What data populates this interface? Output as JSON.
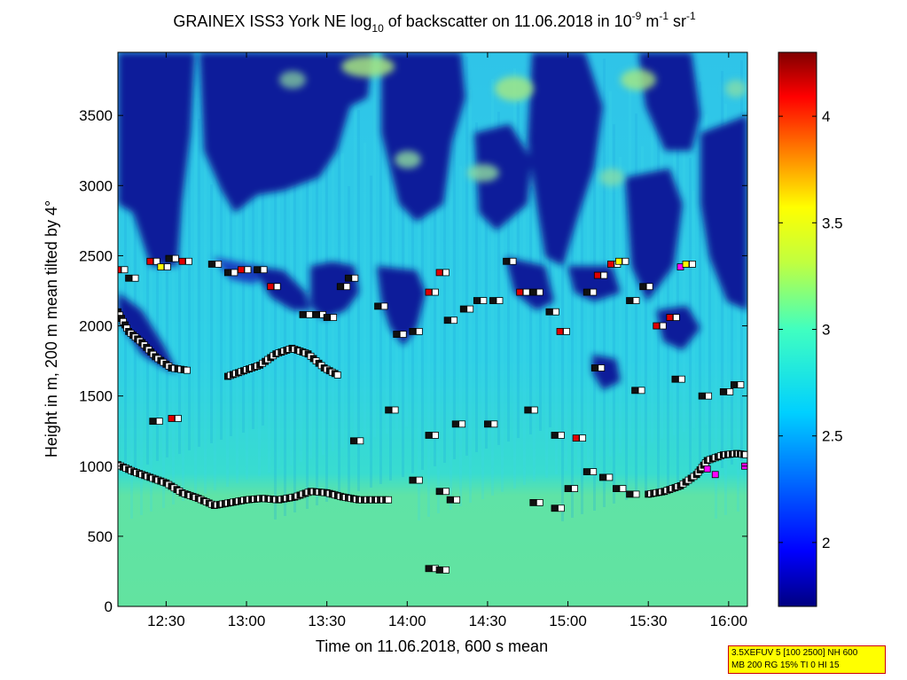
{
  "chart_data": {
    "type": "heatmap",
    "title": {
      "main": "GRAINEX ISS3 York NE log",
      "sub10": "10",
      "mid": " of backscatter on 11.06.2018 in 10",
      "sup_m9": "-9",
      "unit_m": " m",
      "sup_m1a": "-1",
      "unit_sr": " sr",
      "sup_m1b": "-1"
    },
    "xlabel": "Time on 11.06.2018, 600 s mean",
    "ylabel": "Height in m, 200 m mean tilted by 4°",
    "x_range": [
      "12:12",
      "16:07"
    ],
    "ylim": [
      0,
      3950
    ],
    "x_ticks": [
      {
        "label": "12:30",
        "min": 750
      },
      {
        "label": "13:00",
        "min": 780
      },
      {
        "label": "13:30",
        "min": 810
      },
      {
        "label": "14:00",
        "min": 840
      },
      {
        "label": "14:30",
        "min": 870
      },
      {
        "label": "15:00",
        "min": 900
      },
      {
        "label": "15:30",
        "min": 930
      },
      {
        "label": "16:00",
        "min": 960
      }
    ],
    "y_ticks": [
      0,
      500,
      1000,
      1500,
      2000,
      2500,
      3000,
      3500
    ],
    "colorbar": {
      "range": [
        1.7,
        4.3
      ],
      "ticks": [
        {
          "label": "2",
          "value": 2.0
        },
        {
          "label": "2.5",
          "value": 2.5
        },
        {
          "label": "3",
          "value": 3.0
        },
        {
          "label": "3.5",
          "value": 3.5
        },
        {
          "label": "4",
          "value": 4.0
        }
      ]
    },
    "layer_traces": [
      {
        "name": "boundary layer top",
        "points": [
          [
            732,
            1010
          ],
          [
            738,
            960
          ],
          [
            744,
            920
          ],
          [
            750,
            880
          ],
          [
            756,
            810
          ],
          [
            762,
            770
          ],
          [
            768,
            720
          ],
          [
            774,
            740
          ],
          [
            780,
            760
          ],
          [
            786,
            770
          ],
          [
            792,
            760
          ],
          [
            798,
            780
          ],
          [
            804,
            820
          ],
          [
            810,
            810
          ],
          [
            816,
            780
          ],
          [
            822,
            760
          ],
          [
            828,
            760
          ],
          [
            834,
            760
          ]
        ]
      },
      {
        "name": "aerosol layer 2",
        "points": [
          [
            773,
            1640
          ],
          [
            779,
            1680
          ],
          [
            785,
            1720
          ],
          [
            791,
            1800
          ],
          [
            797,
            1840
          ],
          [
            803,
            1800
          ],
          [
            809,
            1700
          ],
          [
            815,
            1640
          ]
        ]
      },
      {
        "name": "aerosol layer 3",
        "points": [
          [
            732,
            2100
          ],
          [
            736,
            1960
          ],
          [
            741,
            1880
          ],
          [
            746,
            1780
          ],
          [
            752,
            1700
          ],
          [
            759,
            1680
          ]
        ]
      },
      {
        "name": "evening top",
        "points": [
          [
            930,
            800
          ],
          [
            936,
            820
          ],
          [
            942,
            860
          ],
          [
            948,
            940
          ],
          [
            952,
            1040
          ],
          [
            958,
            1080
          ],
          [
            963,
            1090
          ],
          [
            967,
            1080
          ]
        ]
      }
    ],
    "markers": [
      {
        "t": 732,
        "h": 2400,
        "c": "red"
      },
      {
        "t": 736,
        "h": 2340,
        "c": "black"
      },
      {
        "t": 744,
        "h": 2460,
        "c": "red"
      },
      {
        "t": 748,
        "h": 2420,
        "c": "yellow"
      },
      {
        "t": 751,
        "h": 2480,
        "c": "black"
      },
      {
        "t": 756,
        "h": 2460,
        "c": "red"
      },
      {
        "t": 767,
        "h": 2440,
        "c": "black"
      },
      {
        "t": 773,
        "h": 2380,
        "c": "black"
      },
      {
        "t": 778,
        "h": 2400,
        "c": "red"
      },
      {
        "t": 784,
        "h": 2400,
        "c": "black"
      },
      {
        "t": 789,
        "h": 2280,
        "c": "red"
      },
      {
        "t": 801,
        "h": 2080,
        "c": "black"
      },
      {
        "t": 806,
        "h": 2080,
        "c": "black"
      },
      {
        "t": 810,
        "h": 2060,
        "c": "black"
      },
      {
        "t": 815,
        "h": 2280,
        "c": "black"
      },
      {
        "t": 818,
        "h": 2340,
        "c": "black"
      },
      {
        "t": 829,
        "h": 2140,
        "c": "black"
      },
      {
        "t": 836,
        "h": 1940,
        "c": "black"
      },
      {
        "t": 842,
        "h": 1960,
        "c": "black"
      },
      {
        "t": 848,
        "h": 2240,
        "c": "red"
      },
      {
        "t": 852,
        "h": 2380,
        "c": "red"
      },
      {
        "t": 855,
        "h": 2040,
        "c": "black"
      },
      {
        "t": 861,
        "h": 2120,
        "c": "black"
      },
      {
        "t": 866,
        "h": 2180,
        "c": "black"
      },
      {
        "t": 872,
        "h": 2180,
        "c": "black"
      },
      {
        "t": 877,
        "h": 2460,
        "c": "black"
      },
      {
        "t": 882,
        "h": 2240,
        "c": "red"
      },
      {
        "t": 887,
        "h": 2240,
        "c": "black"
      },
      {
        "t": 893,
        "h": 2100,
        "c": "black"
      },
      {
        "t": 897,
        "h": 1960,
        "c": "red"
      },
      {
        "t": 907,
        "h": 2240,
        "c": "black"
      },
      {
        "t": 911,
        "h": 2360,
        "c": "red"
      },
      {
        "t": 916,
        "h": 2440,
        "c": "red"
      },
      {
        "t": 919,
        "h": 2460,
        "c": "yellow"
      },
      {
        "t": 923,
        "h": 2180,
        "c": "black"
      },
      {
        "t": 928,
        "h": 2280,
        "c": "black"
      },
      {
        "t": 933,
        "h": 2000,
        "c": "red"
      },
      {
        "t": 938,
        "h": 2060,
        "c": "red"
      },
      {
        "t": 942,
        "h": 2420,
        "c": "magenta"
      },
      {
        "t": 944,
        "h": 2440,
        "c": "yellow"
      },
      {
        "t": 910,
        "h": 1700,
        "c": "black"
      },
      {
        "t": 925,
        "h": 1540,
        "c": "black"
      },
      {
        "t": 940,
        "h": 1620,
        "c": "black"
      },
      {
        "t": 950,
        "h": 1500,
        "c": "black"
      },
      {
        "t": 958,
        "h": 1530,
        "c": "black"
      },
      {
        "t": 962,
        "h": 1580,
        "c": "black"
      },
      {
        "t": 848,
        "h": 1220,
        "c": "black"
      },
      {
        "t": 858,
        "h": 1300,
        "c": "black"
      },
      {
        "t": 870,
        "h": 1300,
        "c": "black"
      },
      {
        "t": 885,
        "h": 1400,
        "c": "black"
      },
      {
        "t": 895,
        "h": 1220,
        "c": "black"
      },
      {
        "t": 903,
        "h": 1200,
        "c": "red"
      },
      {
        "t": 820,
        "h": 1180,
        "c": "black"
      },
      {
        "t": 833,
        "h": 1400,
        "c": "black"
      },
      {
        "t": 752,
        "h": 1340,
        "c": "red"
      },
      {
        "t": 745,
        "h": 1320,
        "c": "black"
      },
      {
        "t": 842,
        "h": 900,
        "c": "black"
      },
      {
        "t": 852,
        "h": 820,
        "c": "black"
      },
      {
        "t": 856,
        "h": 760,
        "c": "black"
      },
      {
        "t": 887,
        "h": 740,
        "c": "black"
      },
      {
        "t": 895,
        "h": 700,
        "c": "black"
      },
      {
        "t": 900,
        "h": 840,
        "c": "black"
      },
      {
        "t": 907,
        "h": 960,
        "c": "black"
      },
      {
        "t": 913,
        "h": 920,
        "c": "black"
      },
      {
        "t": 918,
        "h": 840,
        "c": "black"
      },
      {
        "t": 923,
        "h": 800,
        "c": "black"
      },
      {
        "t": 848,
        "h": 270,
        "c": "black"
      },
      {
        "t": 852,
        "h": 260,
        "c": "black"
      },
      {
        "t": 952,
        "h": 980,
        "c": "magenta"
      },
      {
        "t": 955,
        "h": 940,
        "c": "magenta"
      },
      {
        "t": 966,
        "h": 1000,
        "c": "magenta"
      }
    ]
  },
  "info_box": {
    "line1": "3.5XEFUV 5 [100 2500] NH 600",
    "line2": "MB 200 RG 15% TI 0 HI 15"
  }
}
